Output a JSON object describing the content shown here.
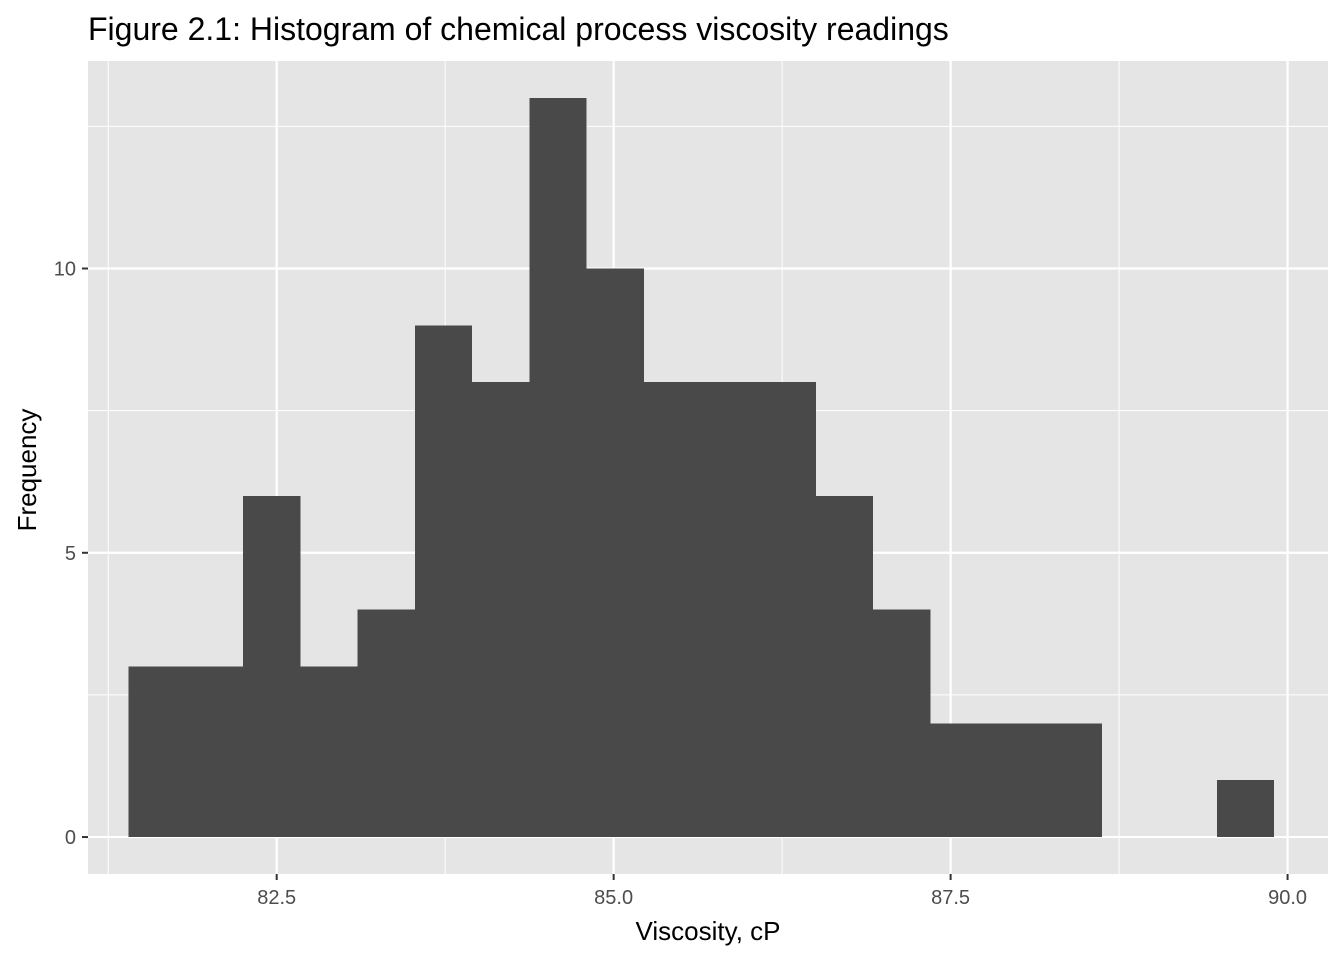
{
  "chart_data": {
    "type": "bar",
    "title": "Figure 2.1: Histogram of chemical process viscosity readings",
    "xlabel": "Viscosity, cP",
    "ylabel": "Frequency",
    "bin_width": 0.425,
    "bins": [
      {
        "start": 81.4,
        "end": 81.825,
        "count": 3
      },
      {
        "start": 81.825,
        "end": 82.25,
        "count": 3
      },
      {
        "start": 82.25,
        "end": 82.675,
        "count": 6
      },
      {
        "start": 82.675,
        "end": 83.1,
        "count": 3
      },
      {
        "start": 83.1,
        "end": 83.525,
        "count": 4
      },
      {
        "start": 83.525,
        "end": 83.95,
        "count": 9
      },
      {
        "start": 83.95,
        "end": 84.375,
        "count": 8
      },
      {
        "start": 84.375,
        "end": 84.8,
        "count": 13
      },
      {
        "start": 84.8,
        "end": 85.225,
        "count": 10
      },
      {
        "start": 85.225,
        "end": 85.65,
        "count": 8
      },
      {
        "start": 85.65,
        "end": 86.075,
        "count": 8
      },
      {
        "start": 86.075,
        "end": 86.5,
        "count": 8
      },
      {
        "start": 86.5,
        "end": 86.925,
        "count": 6
      },
      {
        "start": 86.925,
        "end": 87.35,
        "count": 4
      },
      {
        "start": 87.35,
        "end": 87.775,
        "count": 2
      },
      {
        "start": 87.775,
        "end": 88.2,
        "count": 2
      },
      {
        "start": 88.2,
        "end": 88.625,
        "count": 2
      },
      {
        "start": 88.625,
        "end": 89.05,
        "count": 0
      },
      {
        "start": 89.05,
        "end": 89.475,
        "count": 0
      },
      {
        "start": 89.475,
        "end": 89.9,
        "count": 1
      }
    ],
    "xlim": [
      81.1,
      90.3
    ],
    "ylim": [
      -0.65,
      13.65
    ],
    "x_ticks": [
      82.5,
      85.0,
      87.5,
      90.0
    ],
    "x_tick_labels": [
      "82.5",
      "85.0",
      "87.5",
      "90.0"
    ],
    "y_ticks": [
      0,
      5,
      10
    ],
    "y_tick_labels": [
      "0",
      "5",
      "10"
    ],
    "grid": true,
    "legend": "none",
    "colors": {
      "bar": "#494949",
      "panel": "#e5e5e5",
      "grid": "#ffffff"
    }
  }
}
